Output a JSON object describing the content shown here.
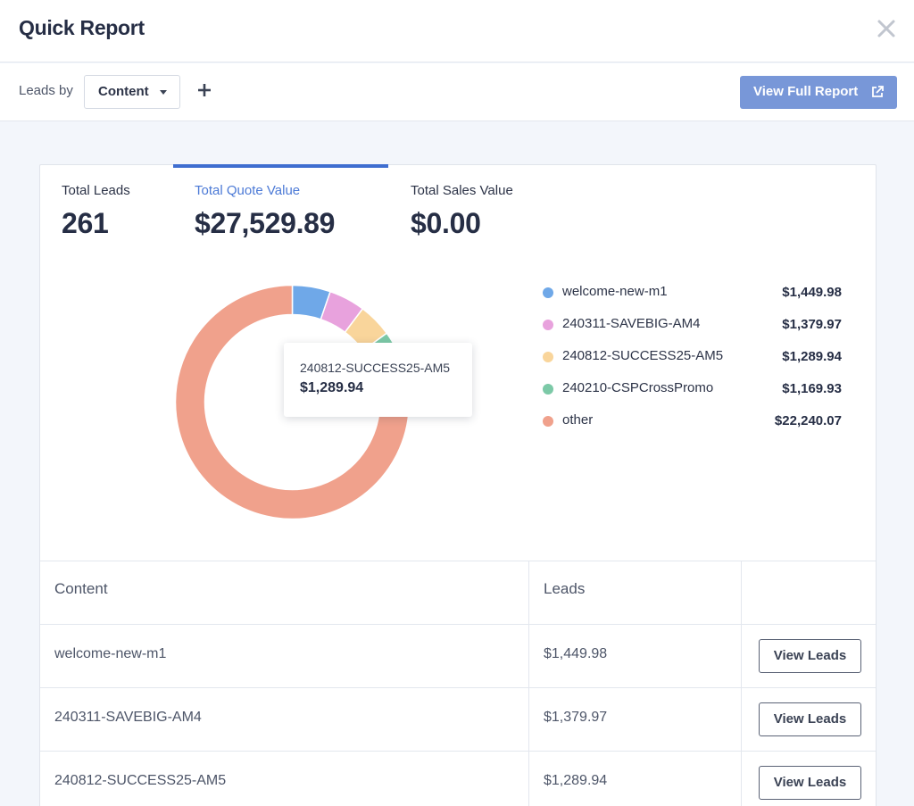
{
  "header": {
    "title": "Quick Report"
  },
  "toolbar": {
    "leads_by_label": "Leads by",
    "select_value": "Content",
    "full_report_label": "View Full Report"
  },
  "stats": [
    {
      "label": "Total Leads",
      "value": "261",
      "active": false
    },
    {
      "label": "Total Quote Value",
      "value": "$27,529.89",
      "active": true
    },
    {
      "label": "Total Sales Value",
      "value": "$0.00",
      "active": false
    }
  ],
  "chart_data": {
    "type": "pie",
    "categories": [
      "welcome-new-m1",
      "240311-SAVEBIG-AM4",
      "240812-SUCCESS25-AM5",
      "240210-CSPCrossPromo",
      "other"
    ],
    "values": [
      1449.98,
      1379.97,
      1289.94,
      1169.93,
      22240.07
    ],
    "value_labels": [
      "$1,449.98",
      "$1,379.97",
      "$1,289.94",
      "$1,169.93",
      "$22,240.07"
    ],
    "colors": [
      "#6fa8e8",
      "#e8a2dd",
      "#f9d59b",
      "#7cc9a7",
      "#f0a18c"
    ],
    "legend_position": "right",
    "tooltip": {
      "name": "240812-SUCCESS25-AM5",
      "value": "$1,289.94"
    }
  },
  "table": {
    "headers": {
      "content": "Content",
      "leads": "Leads"
    },
    "button_label": "View Leads",
    "rows": [
      {
        "content": "welcome-new-m1",
        "leads": "$1,449.98"
      },
      {
        "content": "240311-SAVEBIG-AM4",
        "leads": "$1,379.97"
      },
      {
        "content": "240812-SUCCESS25-AM5",
        "leads": "$1,289.94"
      }
    ]
  }
}
